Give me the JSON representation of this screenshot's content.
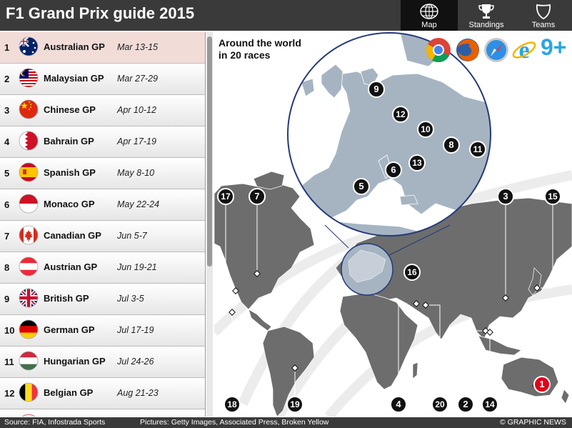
{
  "header": {
    "title": "F1 Grand Prix guide 2015",
    "tabs": [
      {
        "label": "Map",
        "icon": "globe-icon",
        "active": true
      },
      {
        "label": "Standings",
        "icon": "trophy-icon",
        "active": false
      },
      {
        "label": "Teams",
        "icon": "shield-icon",
        "active": false
      }
    ]
  },
  "races": [
    {
      "num": "1",
      "name": "Australian GP",
      "date": "Mar 13-15",
      "flag": "australia-flag-icon"
    },
    {
      "num": "2",
      "name": "Malaysian GP",
      "date": "Mar 27-29",
      "flag": "malaysia-flag-icon"
    },
    {
      "num": "3",
      "name": "Chinese GP",
      "date": "Apr 10-12",
      "flag": "china-flag-icon"
    },
    {
      "num": "4",
      "name": "Bahrain GP",
      "date": "Apr 17-19",
      "flag": "bahrain-flag-icon"
    },
    {
      "num": "5",
      "name": "Spanish GP",
      "date": "May 8-10",
      "flag": "spain-flag-icon"
    },
    {
      "num": "6",
      "name": "Monaco GP",
      "date": "May 22-24",
      "flag": "monaco-flag-icon"
    },
    {
      "num": "7",
      "name": "Canadian GP",
      "date": "Jun 5-7",
      "flag": "canada-flag-icon"
    },
    {
      "num": "8",
      "name": "Austrian GP",
      "date": "Jun 19-21",
      "flag": "austria-flag-icon"
    },
    {
      "num": "9",
      "name": "British GP",
      "date": "Jul 3-5",
      "flag": "uk-flag-icon"
    },
    {
      "num": "10",
      "name": "German GP",
      "date": "Jul 17-19",
      "flag": "germany-flag-icon"
    },
    {
      "num": "11",
      "name": "Hungarian GP",
      "date": "Jul 24-26",
      "flag": "hungary-flag-icon"
    },
    {
      "num": "12",
      "name": "Belgian GP",
      "date": "Aug 21-23",
      "flag": "belgium-flag-icon"
    }
  ],
  "map": {
    "heading_line1": "Around the world",
    "heading_line2": "in 20 races",
    "browsers": [
      "chrome-icon",
      "firefox-icon",
      "safari-icon",
      "ie-icon"
    ],
    "ie_version": "9+",
    "markers": [
      "1",
      "2",
      "3",
      "4",
      "5",
      "6",
      "7",
      "8",
      "9",
      "10",
      "11",
      "12",
      "13",
      "14",
      "15",
      "16",
      "17",
      "18",
      "19",
      "20"
    ]
  },
  "footer": {
    "source": "Source: FIA, Infostrada Sports",
    "pictures": "Pictures: Getty Images, Associated Press, Broken Yellow",
    "copyright": "© GRAPHIC NEWS"
  },
  "colors": {
    "header_bg": "#3a3a3a",
    "land": "#6d6d6d",
    "inset_land": "#a6b4c2",
    "inset_border": "#243a7a",
    "selected_row": "#f2dcd8",
    "marker_bg": "#111111",
    "current_marker": "#e0001b"
  }
}
